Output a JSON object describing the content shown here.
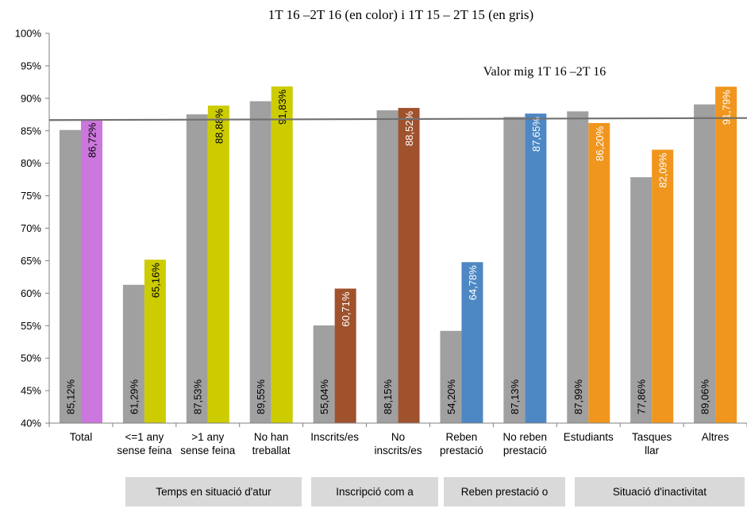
{
  "chart_data": {
    "type": "bar",
    "title": "1T 16 –2T 16 (en color) i 1T 15 – 2T 15 (en gris)",
    "ylim": [
      40,
      100
    ],
    "yticks": [
      "40%",
      "45%",
      "50%",
      "55%",
      "60%",
      "65%",
      "70%",
      "75%",
      "80%",
      "85%",
      "90%",
      "95%",
      "100%"
    ],
    "categories": [
      [
        "Total"
      ],
      [
        "<=1 any",
        "sense feina"
      ],
      [
        ">1 any",
        "sense feina"
      ],
      [
        "No han",
        "treballat"
      ],
      [
        "Inscrits/es"
      ],
      [
        "No",
        "inscrits/es"
      ],
      [
        "Reben",
        "prestació"
      ],
      [
        "No reben",
        "prestació"
      ],
      [
        "Estudiants"
      ],
      [
        "Tasques",
        "llar"
      ],
      [
        "Altres"
      ]
    ],
    "series": [
      {
        "values": [
          85.12,
          61.29,
          87.53,
          89.55,
          55.04,
          88.15,
          54.2,
          87.13,
          87.99,
          77.86,
          89.06
        ],
        "labels": [
          "85,12%",
          "61,29%",
          "87,53%",
          "89,55%",
          "55,04%",
          "88,15%",
          "54,20%",
          "87,13%",
          "87,99%",
          "77,86%",
          "89,06%"
        ],
        "colors": [
          "#a0a0a0"
        ]
      },
      {
        "values": [
          86.72,
          65.16,
          88.88,
          91.83,
          60.71,
          88.52,
          64.78,
          87.65,
          86.2,
          82.09,
          91.79
        ],
        "labels": [
          "86,72%",
          "65,16%",
          "88,88%",
          "91,83%",
          "60,71%",
          "88,52%",
          "64,78%",
          "87,65%",
          "86,20%",
          "82,09%",
          "91,79%"
        ],
        "colors": [
          "#cc77dd",
          "#cccc00",
          "#cccc00",
          "#cccc00",
          "#a0522d",
          "#a0522d",
          "#4d88c4",
          "#4d88c4",
          "#f0961e",
          "#f0961e",
          "#f0961e"
        ]
      }
    ],
    "reference_line": {
      "label": "Valor mig 1T 16 –2T 16",
      "value": 86.72,
      "color": "#707070"
    },
    "groups": [
      {
        "label": "Temps en situació d'atur"
      },
      {
        "label": "Inscripció com a"
      },
      {
        "label": "Reben prestació o"
      },
      {
        "label": "Situació d'inactivitat"
      }
    ]
  }
}
